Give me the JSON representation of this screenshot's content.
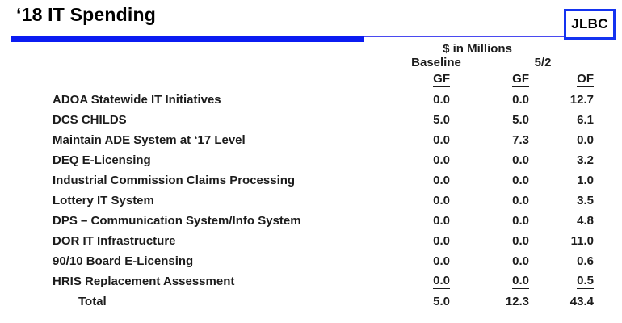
{
  "title": "‘18 IT Spending",
  "logo": {
    "label": "JLBC"
  },
  "colors": {
    "accent_blue": "#0b1cf2",
    "thin_rule_blue": "#4a4af0",
    "logo_border_blue": "#1433f0",
    "text": "#1c1c1c"
  },
  "table": {
    "units_label": "$ in Millions",
    "group_headers": {
      "baseline": "Baseline",
      "may2": "5/2"
    },
    "col_headers": [
      "GF",
      "GF",
      "OF"
    ],
    "rows": [
      {
        "label": "ADOA Statewide IT Initiatives",
        "values": [
          "0.0",
          "0.0",
          "12.7"
        ],
        "underline": false
      },
      {
        "label": "DCS CHILDS",
        "values": [
          "5.0",
          "5.0",
          "6.1"
        ],
        "underline": false
      },
      {
        "label": "Maintain ADE System at ‘17 Level",
        "values": [
          "0.0",
          "7.3",
          "0.0"
        ],
        "underline": false
      },
      {
        "label": "DEQ E-Licensing",
        "values": [
          "0.0",
          "0.0",
          "3.2"
        ],
        "underline": false
      },
      {
        "label": "Industrial Commission Claims Processing",
        "values": [
          "0.0",
          "0.0",
          "1.0"
        ],
        "underline": false
      },
      {
        "label": "Lottery IT System",
        "values": [
          "0.0",
          "0.0",
          "3.5"
        ],
        "underline": false
      },
      {
        "label": "DPS – Communication System/Info System",
        "values": [
          "0.0",
          "0.0",
          "4.8"
        ],
        "underline": false
      },
      {
        "label": "DOR IT Infrastructure",
        "values": [
          "0.0",
          "0.0",
          "11.0"
        ],
        "underline": false
      },
      {
        "label": "90/10 Board E-Licensing",
        "values": [
          "0.0",
          "0.0",
          "0.6"
        ],
        "underline": false
      },
      {
        "label": "HRIS Replacement Assessment",
        "values": [
          "0.0",
          "0.0",
          "0.5"
        ],
        "underline": true
      }
    ],
    "total": {
      "label": "Total",
      "values": [
        "5.0",
        "12.3",
        "43.4"
      ]
    }
  }
}
